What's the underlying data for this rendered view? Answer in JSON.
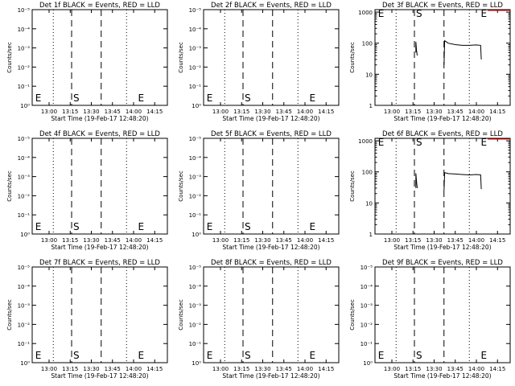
{
  "colors": {
    "events": "#000000",
    "lld": "#ff0000",
    "background": "#ffffff"
  },
  "axes": {
    "xlabel": "Start Time (19-Feb-17 12:48:20)",
    "ylabel": "Counts/sec",
    "xticks": [
      "13:00",
      "13:15",
      "13:30",
      "13:45",
      "14:00",
      "14:15"
    ],
    "xtick_minutes": [
      0,
      15,
      30,
      45,
      60,
      75
    ],
    "xlim_minutes": [
      -12,
      84
    ],
    "markers": [
      {
        "label": "E",
        "minute": -11,
        "line": "none"
      },
      {
        "label": "S",
        "minute": 16,
        "line": "dashed"
      },
      {
        "label": "E",
        "minute": 62,
        "line": "none"
      }
    ],
    "dotted_minutes": [
      3,
      55
    ],
    "dashed_minutes": [
      16,
      37
    ],
    "low_yticks": [
      "10⁰",
      "10⁻¹",
      "10⁻²",
      "10⁻³",
      "10⁻⁴",
      "10⁻⁵"
    ],
    "low_ylim": [
      1e-06,
      0.0001
    ],
    "high_yticks": [
      "1",
      "10",
      "100",
      "1000"
    ],
    "high_ylim": [
      1,
      1200
    ]
  },
  "chart_data": [
    {
      "type": "line",
      "title": "Det 1f BLACK = Events, RED = LLD",
      "scale": "low",
      "series": []
    },
    {
      "type": "line",
      "title": "Det 2f BLACK = Events, RED = LLD",
      "scale": "low",
      "series": []
    },
    {
      "type": "line",
      "title": "Det 3f BLACK = Events, RED = LLD",
      "scale": "high",
      "series": [
        {
          "color": "#000000",
          "x": [
            17,
            17,
            17.5,
            18
          ],
          "y": [
            50,
            110,
            60,
            40
          ]
        },
        {
          "color": "#000000",
          "x": [
            37,
            37.5,
            40,
            45,
            50,
            55,
            60,
            63,
            63.5
          ],
          "y": [
            20,
            120,
            100,
            90,
            85,
            85,
            88,
            85,
            30
          ]
        }
      ]
    },
    {
      "type": "line",
      "title": "Det 4f BLACK = Events, RED = LLD",
      "scale": "low",
      "series": []
    },
    {
      "type": "line",
      "title": "Det 5f BLACK = Events, RED = LLD",
      "scale": "low",
      "series": []
    },
    {
      "type": "line",
      "title": "Det 6f BLACK = Events, RED = LLD",
      "scale": "high",
      "series": [
        {
          "color": "#000000",
          "x": [
            17,
            17,
            17.5,
            18
          ],
          "y": [
            30,
            90,
            50,
            30
          ]
        },
        {
          "color": "#000000",
          "x": [
            37,
            37.5,
            40,
            45,
            50,
            55,
            60,
            63,
            63.5
          ],
          "y": [
            25,
            95,
            88,
            85,
            82,
            80,
            82,
            80,
            28
          ]
        }
      ]
    },
    {
      "type": "line",
      "title": "Det 7f BLACK = Events, RED = LLD",
      "scale": "low",
      "series": []
    },
    {
      "type": "line",
      "title": "Det 8f BLACK = Events, RED = LLD",
      "scale": "low",
      "series": []
    },
    {
      "type": "line",
      "title": "Det 9f BLACK = Events, RED = LLD",
      "scale": "low",
      "series": []
    }
  ]
}
